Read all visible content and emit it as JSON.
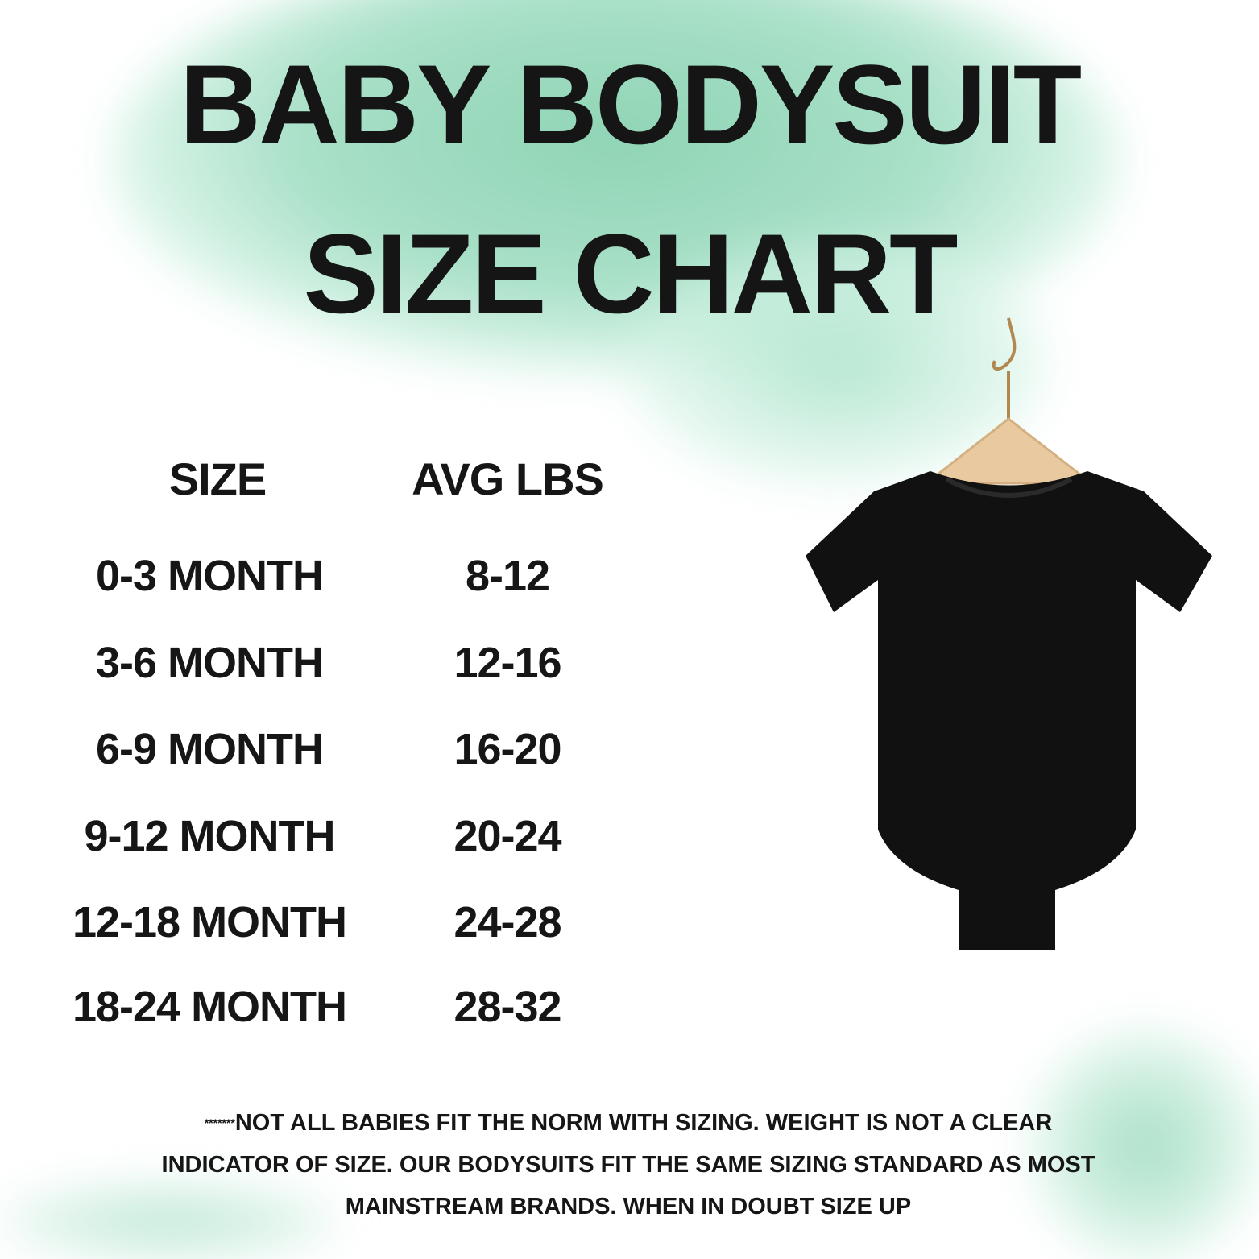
{
  "title": {
    "line1": "BABY BODYSUIT",
    "line2": "SIZE CHART"
  },
  "table": {
    "headers": [
      "SIZE",
      "AVG LBS"
    ],
    "rows": [
      {
        "size": "0-3 MONTH",
        "lbs": "8-12"
      },
      {
        "size": "3-6 MONTH",
        "lbs": "12-16"
      },
      {
        "size": "6-9 MONTH",
        "lbs": "16-20"
      },
      {
        "size": "9-12 MONTH",
        "lbs": "20-24"
      },
      {
        "size": "12-18 MONTH",
        "lbs": "24-28"
      },
      {
        "size": "18-24 MONTH",
        "lbs": "28-32"
      }
    ]
  },
  "note": {
    "prefix": "*******",
    "text": "NOT ALL BABIES FIT THE NORM WITH SIZING. WEIGHT IS NOT A CLEAR INDICATOR OF SIZE. OUR BODYSUITS FIT THE SAME SIZING STANDARD AS MOST MAINSTREAM BRANDS. WHEN IN DOUBT SIZE UP"
  },
  "colors": {
    "watercolor": "#8fd4b4",
    "text": "#161616",
    "bodysuit": "#111111",
    "hanger": "#e8c9a0"
  }
}
